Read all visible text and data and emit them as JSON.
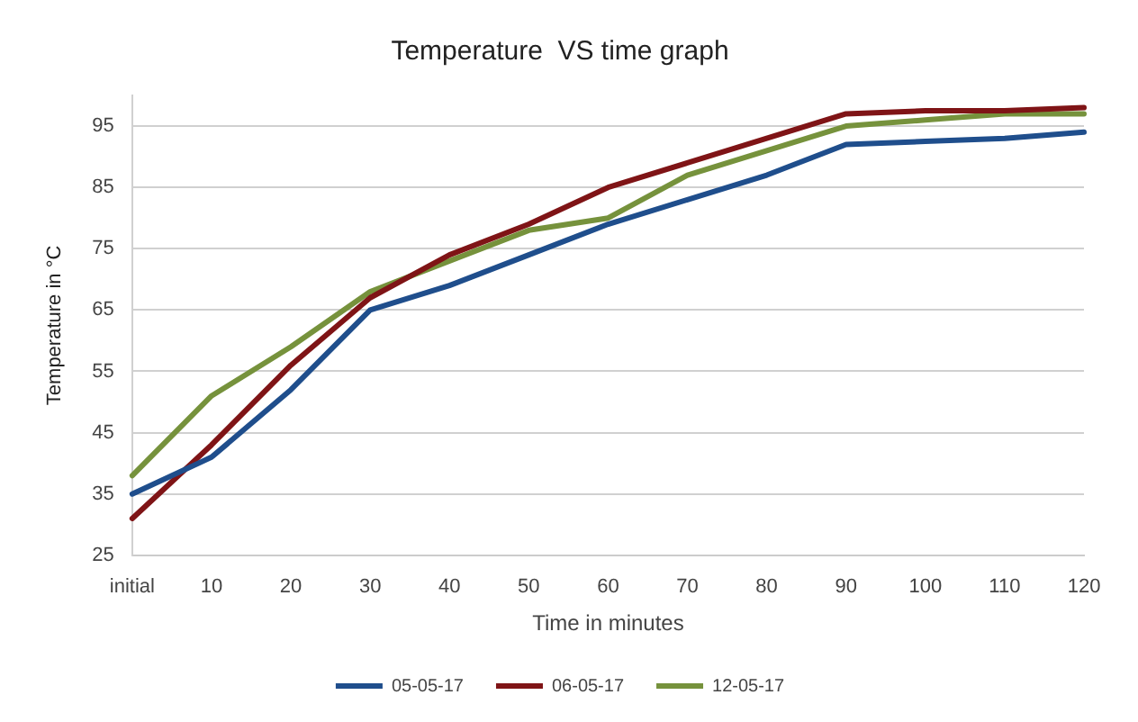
{
  "chart_data": {
    "type": "line",
    "title": "Temperature  VS time graph",
    "xlabel": "Time in minutes",
    "ylabel": "Temperature in °C",
    "categories": [
      "initial",
      "10",
      "20",
      "30",
      "40",
      "50",
      "60",
      "70",
      "80",
      "90",
      "100",
      "110",
      "120"
    ],
    "series": [
      {
        "name": "05-05-17",
        "color": "#1f4e8c",
        "values": [
          35,
          41,
          52,
          65,
          69,
          74,
          79,
          83,
          87,
          92,
          92.5,
          93,
          94
        ]
      },
      {
        "name": "06-05-17",
        "color": "#7f1416",
        "values": [
          31,
          43,
          56,
          67,
          74,
          79,
          85,
          89,
          93,
          97,
          97.5,
          97.5,
          98
        ]
      },
      {
        "name": "12-05-17",
        "color": "#76923c",
        "values": [
          38,
          51,
          59,
          68,
          73,
          78,
          80,
          87,
          91,
          95,
          96,
          97,
          97
        ]
      }
    ],
    "ylim": [
      25,
      100
    ],
    "yticks": [
      25,
      35,
      45,
      55,
      65,
      75,
      85,
      95
    ],
    "grid": "y",
    "legend": "bottom",
    "marker": "none",
    "line_style": "solid"
  }
}
